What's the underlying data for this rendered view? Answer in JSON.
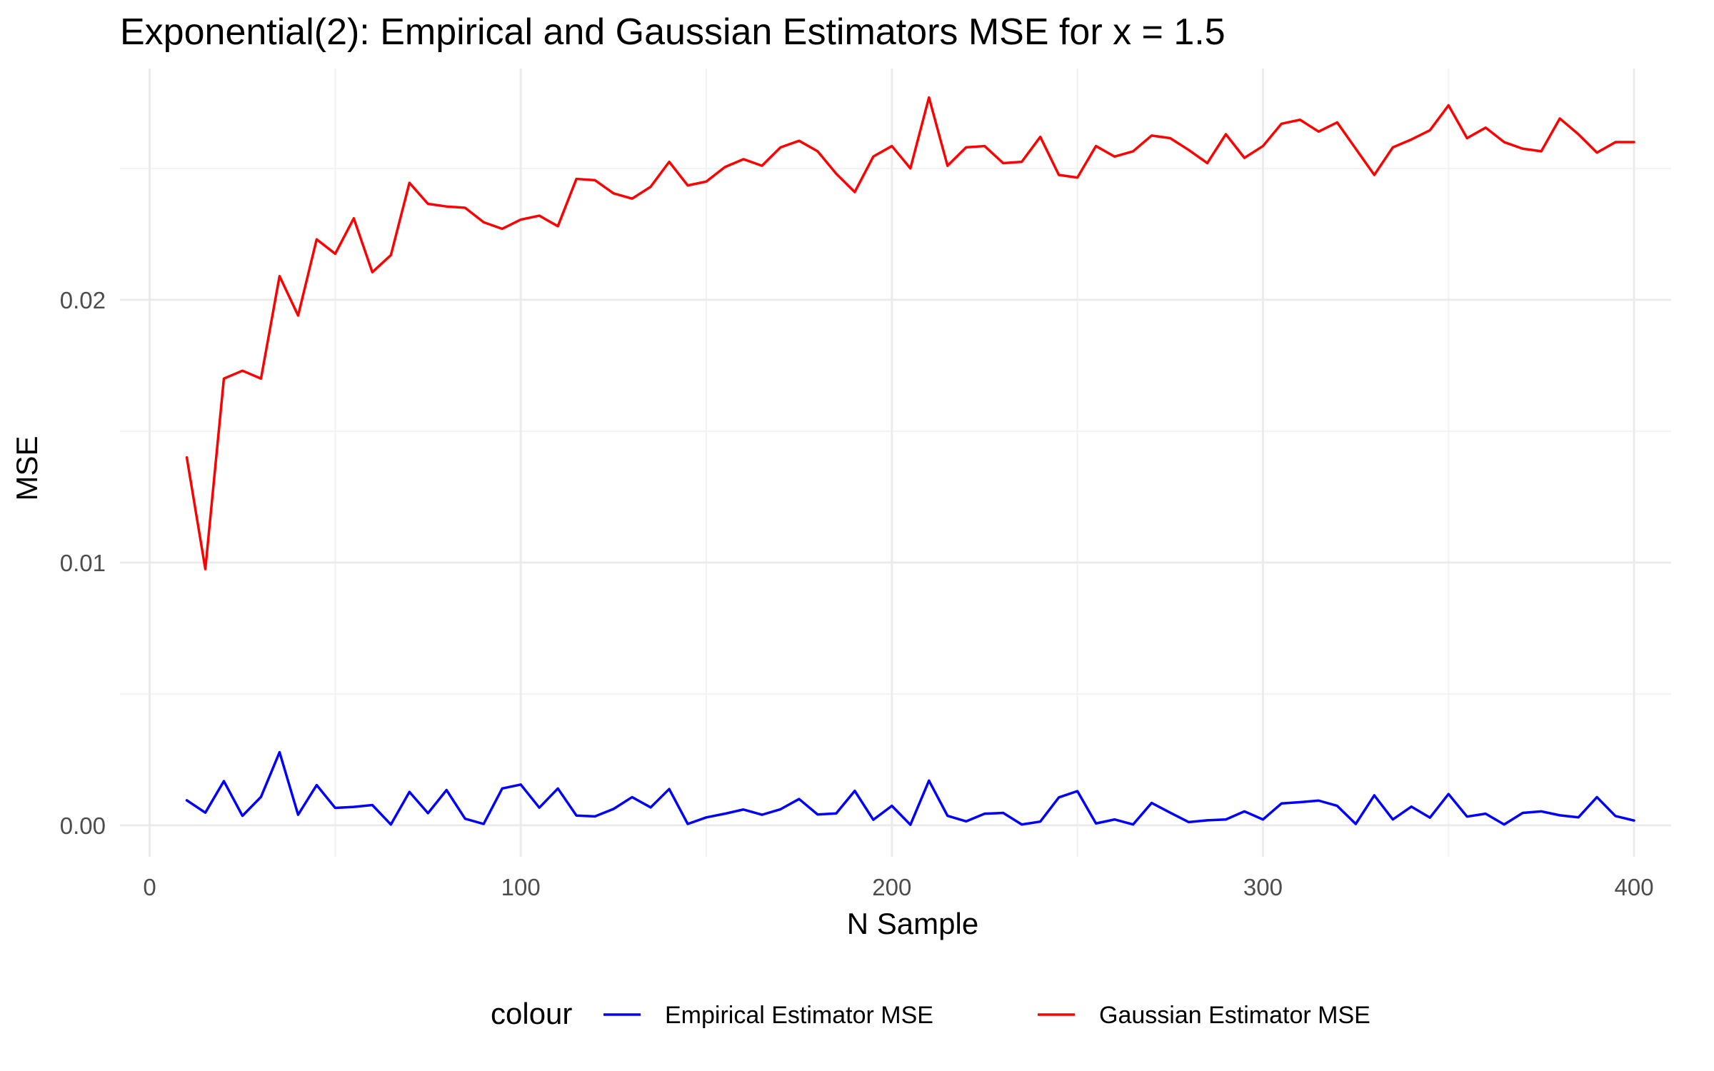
{
  "chart_data": {
    "type": "line",
    "title": "Exponential(2): Empirical and Gaussian Estimators MSE for x = 1.5",
    "xlabel": "N Sample",
    "ylabel": "MSE",
    "xlim": [
      -8,
      410
    ],
    "ylim": [
      -0.0012,
      0.0288
    ],
    "x_ticks": [
      0,
      100,
      200,
      300,
      400
    ],
    "x_tick_labels": [
      "0",
      "100",
      "200",
      "300",
      "400"
    ],
    "y_ticks": [
      0,
      0.01,
      0.02
    ],
    "y_tick_labels": [
      "0.00",
      "0.01",
      "0.02"
    ],
    "grid": true,
    "legend": {
      "title": "colour",
      "position": "bottom"
    },
    "x": [
      10,
      15,
      20,
      25,
      30,
      35,
      40,
      45,
      50,
      55,
      60,
      65,
      70,
      75,
      80,
      85,
      90,
      95,
      100,
      105,
      110,
      115,
      120,
      125,
      130,
      135,
      140,
      145,
      150,
      155,
      160,
      165,
      170,
      175,
      180,
      185,
      190,
      195,
      200,
      205,
      210,
      215,
      220,
      225,
      230,
      235,
      240,
      245,
      250,
      255,
      260,
      265,
      270,
      275,
      280,
      285,
      290,
      295,
      300,
      305,
      310,
      315,
      320,
      325,
      330,
      335,
      340,
      345,
      350,
      355,
      360,
      365,
      370,
      375,
      380,
      385,
      390,
      395,
      400
    ],
    "series": [
      {
        "name": "Empirical Estimator MSE",
        "color": "#0000ff",
        "values": [
          0.00095,
          0.00048,
          0.00168,
          0.00036,
          0.00108,
          0.00278,
          0.0004,
          0.00153,
          0.00066,
          0.0007,
          0.00077,
          3e-05,
          0.00127,
          0.00046,
          0.00134,
          0.00025,
          5e-05,
          0.0014,
          0.00155,
          0.00067,
          0.0014,
          0.00037,
          0.00034,
          0.00062,
          0.00107,
          0.00068,
          0.00138,
          5e-05,
          0.0003,
          0.00044,
          0.0006,
          0.0004,
          0.00061,
          0.001,
          0.00041,
          0.00045,
          0.00131,
          0.00021,
          0.00074,
          2e-05,
          0.0017,
          0.00036,
          0.00015,
          0.00044,
          0.00047,
          3e-05,
          0.00014,
          0.00106,
          0.0013,
          7e-05,
          0.00022,
          3e-05,
          0.00085,
          0.00048,
          0.00012,
          0.00019,
          0.00022,
          0.00053,
          0.00022,
          0.00083,
          0.00088,
          0.00094,
          0.00074,
          5e-05,
          0.00114,
          0.00022,
          0.00071,
          0.00029,
          0.00119,
          0.00033,
          0.00044,
          3e-05,
          0.00047,
          0.00053,
          0.00038,
          0.0003,
          0.00107,
          0.00035,
          0.00018
        ]
      },
      {
        "name": "Gaussian Estimator MSE",
        "color": "#ff0000",
        "values": [
          0.014,
          0.00975,
          0.017,
          0.0173,
          0.017,
          0.0209,
          0.0194,
          0.0223,
          0.02175,
          0.0231,
          0.02105,
          0.0217,
          0.02445,
          0.02365,
          0.02355,
          0.0235,
          0.02295,
          0.0227,
          0.02305,
          0.0232,
          0.0228,
          0.0246,
          0.02455,
          0.02405,
          0.02385,
          0.0243,
          0.02525,
          0.02435,
          0.0245,
          0.02505,
          0.02535,
          0.0251,
          0.0258,
          0.02605,
          0.02565,
          0.0248,
          0.0241,
          0.02545,
          0.02585,
          0.025,
          0.0277,
          0.0251,
          0.0258,
          0.02585,
          0.0252,
          0.02525,
          0.0262,
          0.02475,
          0.02465,
          0.02585,
          0.02545,
          0.02565,
          0.02625,
          0.02615,
          0.0257,
          0.0252,
          0.0263,
          0.0254,
          0.02585,
          0.0267,
          0.02685,
          0.0264,
          0.02675,
          0.02575,
          0.02475,
          0.0258,
          0.0261,
          0.02645,
          0.0274,
          0.02615,
          0.02655,
          0.026,
          0.02575,
          0.02565,
          0.0269,
          0.0263,
          0.0256,
          0.026,
          0.026
        ]
      }
    ]
  }
}
